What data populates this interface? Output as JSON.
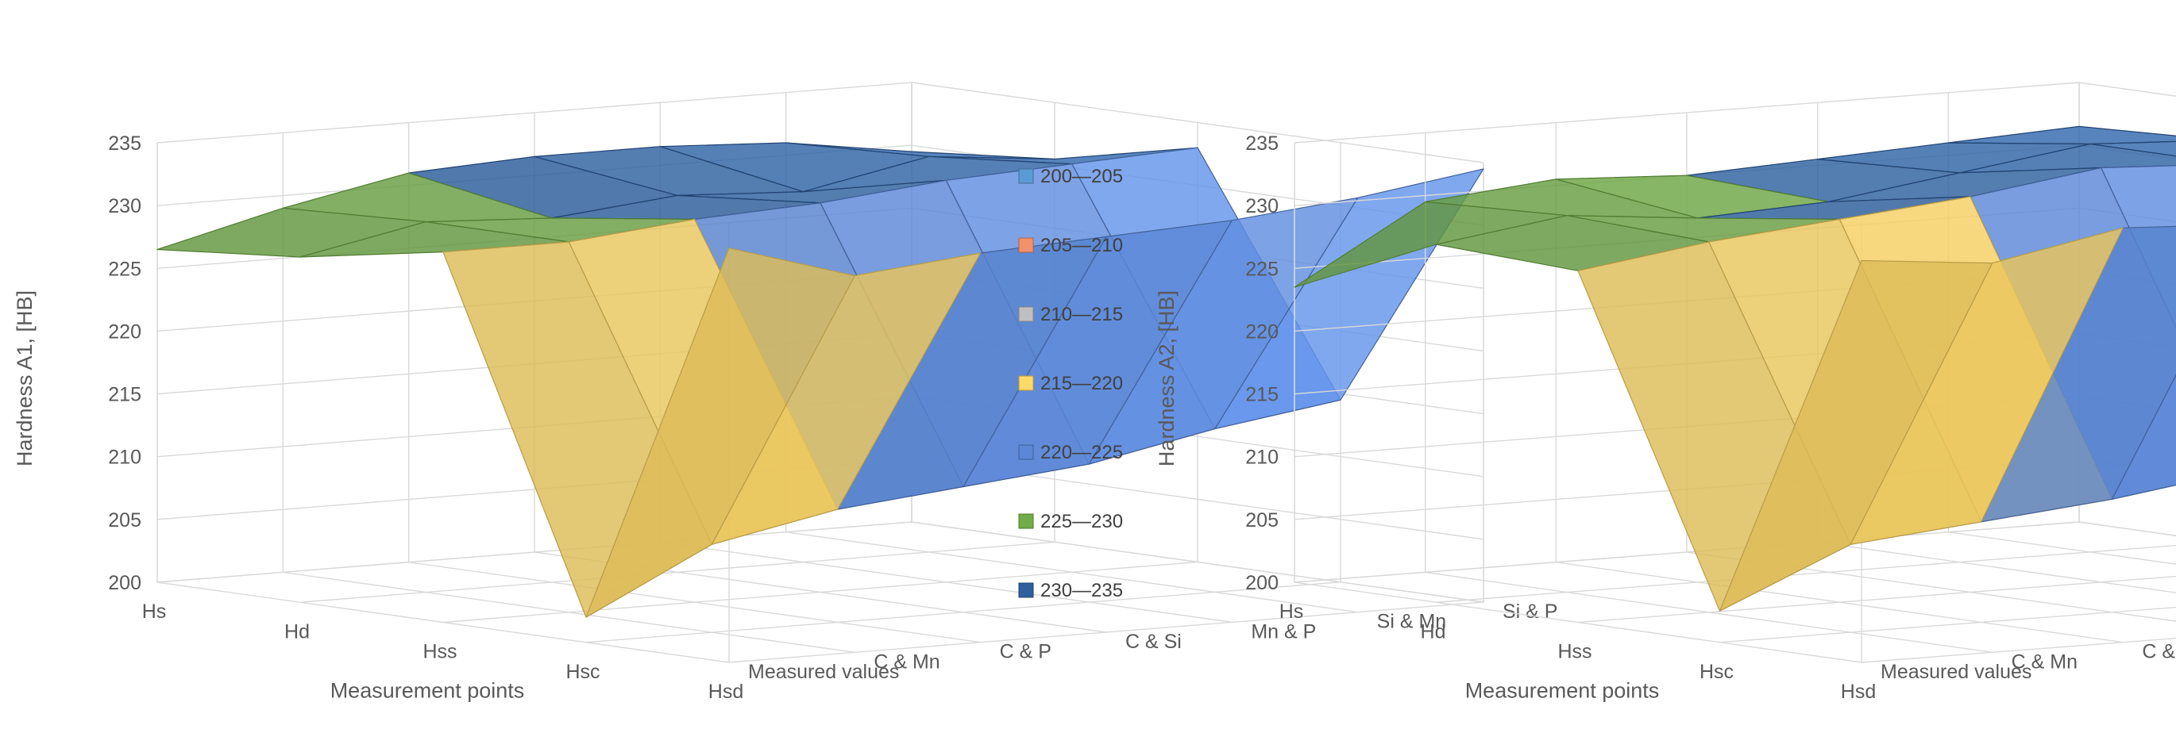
{
  "chart_data": [
    {
      "type": "surface",
      "ylabel": "Hardness  A1, [HB]",
      "xlabel": "Measurement points",
      "zlim": [
        200,
        235
      ],
      "z_ticks": [
        "200",
        "205",
        "210",
        "215",
        "220",
        "225",
        "230",
        "235"
      ],
      "x_categories": [
        "Hs",
        "Hd",
        "Hss",
        "Hsc",
        "Hsd"
      ],
      "y_categories": [
        "Measured values",
        "C & Mn",
        "C & P",
        "C & Si",
        "Mn & P",
        "Si & Mn",
        "Si & P"
      ],
      "values": [
        [
          226.5,
          227.5,
          229.5,
          202.0,
          233.0
        ],
        [
          229.0,
          229.5,
          229.5,
          207.0,
          230.0
        ],
        [
          231.0,
          229.0,
          230.5,
          209.0,
          231.0
        ],
        [
          231.5,
          230.0,
          231.0,
          210.0,
          231.5
        ],
        [
          231.5,
          229.5,
          232.0,
          211.0,
          232.0
        ],
        [
          231.0,
          231.5,
          232.5,
          213.0,
          233.0
        ],
        [
          229.5,
          230.5,
          233.0,
          214.5,
          234.5
        ]
      ]
    },
    {
      "type": "surface",
      "ylabel": "Hardness  A2, [HB]",
      "xlabel": "Measurement points",
      "zlim": [
        200,
        235
      ],
      "z_ticks": [
        "200",
        "205",
        "210",
        "215",
        "220",
        "225",
        "230",
        "235"
      ],
      "x_categories": [
        "Hs",
        "Hd",
        "Hss",
        "Hsc",
        "Hsd"
      ],
      "y_categories": [
        "Measured values",
        "C & Mn",
        "C & P",
        "C & Si",
        "Mn & P",
        "Si & Mn",
        "Si & P"
      ],
      "values": [
        [
          223.5,
          228.5,
          228.0,
          202.5,
          232.0
        ],
        [
          229.5,
          230.0,
          229.5,
          207.0,
          231.0
        ],
        [
          230.5,
          229.0,
          230.5,
          208.0,
          233.0
        ],
        [
          230.0,
          229.5,
          231.5,
          209.0,
          232.5
        ],
        [
          230.5,
          231.0,
          233.0,
          210.5,
          234.0
        ],
        [
          231.0,
          232.5,
          232.5,
          212.0,
          234.5
        ],
        [
          231.5,
          232.0,
          233.5,
          213.0,
          235.5
        ]
      ]
    }
  ],
  "legend": {
    "entries": [
      {
        "label": "200—205",
        "color": "#5b9bd5"
      },
      {
        "label": "205—210",
        "color": "#f4906a"
      },
      {
        "label": "210—215",
        "color": "#bfbfbf"
      },
      {
        "label": "215—220",
        "color": "#ffd966"
      },
      {
        "label": "220—225",
        "color": "#5b87d6"
      },
      {
        "label": "225—230",
        "color": "#70ad47"
      },
      {
        "label": "230—235",
        "color": "#2e5f9e"
      }
    ]
  }
}
